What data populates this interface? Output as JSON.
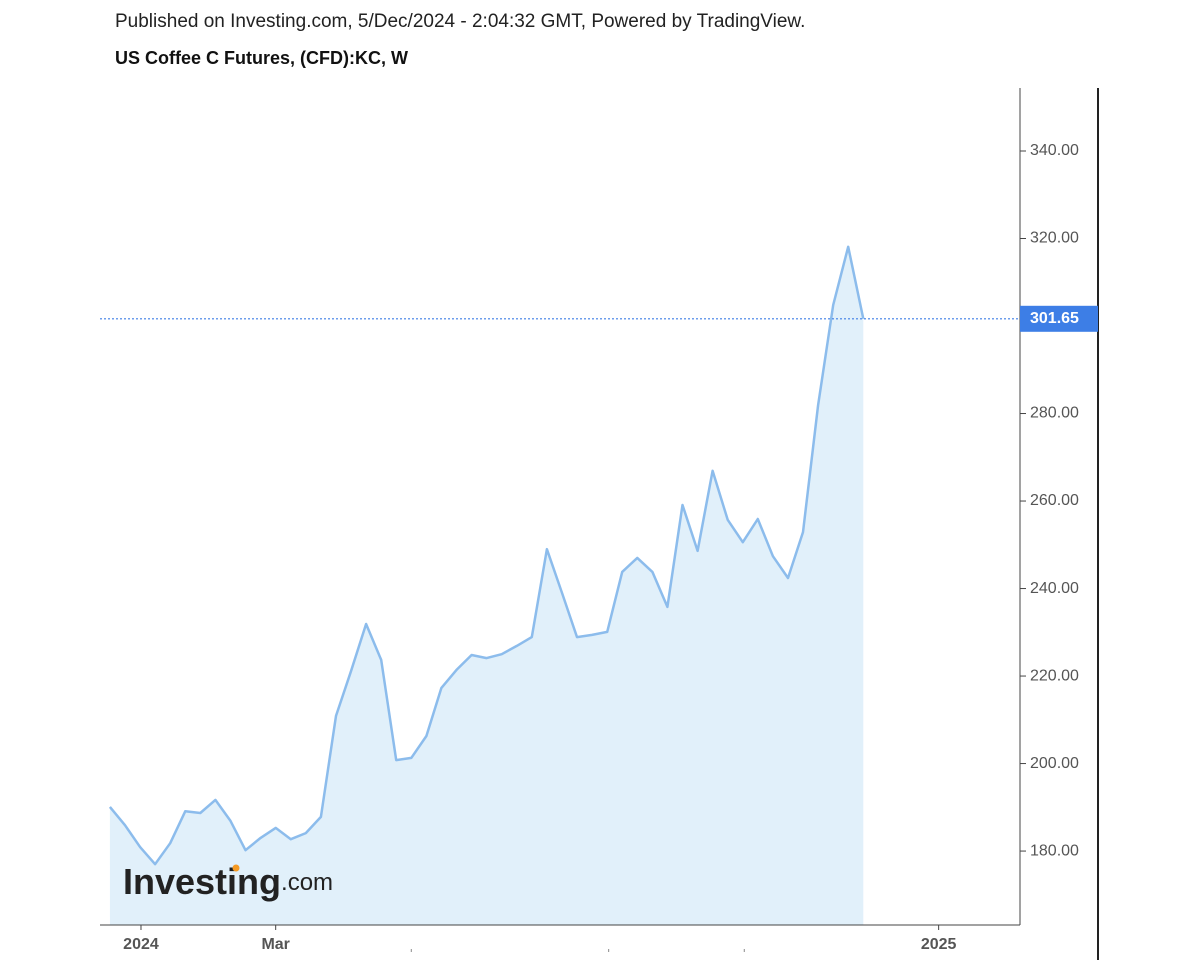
{
  "header": {
    "published": "Published on Investing.com, 5/Dec/2024 - 2:04:32 GMT, Powered by TradingView.",
    "instrument": "US Coffee C Futures, (CFD):KC, W"
  },
  "watermark": {
    "brand": "Investing",
    "suffix": ".com"
  },
  "chart_data": {
    "type": "area",
    "x": [
      0,
      1,
      2,
      3,
      4,
      5,
      6,
      7,
      8,
      9,
      10,
      11,
      12,
      13,
      14,
      15,
      16,
      17,
      18,
      19,
      20,
      21,
      22,
      23,
      24,
      25,
      26,
      27,
      28,
      29,
      30,
      31,
      32,
      33,
      34,
      35,
      36,
      37,
      38,
      39,
      40,
      41,
      42,
      43,
      44,
      45,
      46,
      47,
      48,
      49,
      50
    ],
    "values": [
      190.1,
      185.9,
      180.9,
      177.0,
      181.8,
      189.1,
      188.7,
      191.7,
      186.9,
      180.2,
      183.0,
      185.3,
      182.7,
      184.1,
      187.8,
      210.9,
      221.1,
      231.9,
      223.7,
      200.8,
      201.3,
      206.3,
      217.3,
      221.4,
      224.8,
      224.1,
      225.0,
      226.9,
      228.9,
      249.0,
      239.0,
      228.9,
      229.4,
      230.1,
      243.8,
      247.0,
      243.8,
      235.8,
      259.1,
      248.6,
      266.9,
      255.7,
      250.6,
      255.9,
      247.4,
      242.4,
      252.9,
      281.9,
      304.8,
      318.1,
      301.65
    ],
    "color": "#8cbcec",
    "fill_color": "#e1f0fa",
    "last_value": 301.65,
    "last_color": "#3d7ee6",
    "xlim": [
      -0.66,
      60.4
    ],
    "xticks": [
      {
        "value": 2.06,
        "label": "2024"
      },
      {
        "value": 11.0,
        "label": "Mar"
      },
      {
        "value": 55.0,
        "label": "2025"
      }
    ],
    "xminor": [
      20.0,
      33.1,
      42.1
    ],
    "ylim": [
      163.1,
      354.4
    ],
    "yticks": [
      {
        "value": 180,
        "label": "180.00"
      },
      {
        "value": 200,
        "label": "200.00"
      },
      {
        "value": 220,
        "label": "220.00"
      },
      {
        "value": 240,
        "label": "240.00"
      },
      {
        "value": 260,
        "label": "260.00"
      },
      {
        "value": 280,
        "label": "280.00"
      },
      {
        "value": 300,
        "label": "300.00"
      },
      {
        "value": 320,
        "label": "320.00"
      },
      {
        "value": 340,
        "label": "340.00"
      }
    ]
  }
}
